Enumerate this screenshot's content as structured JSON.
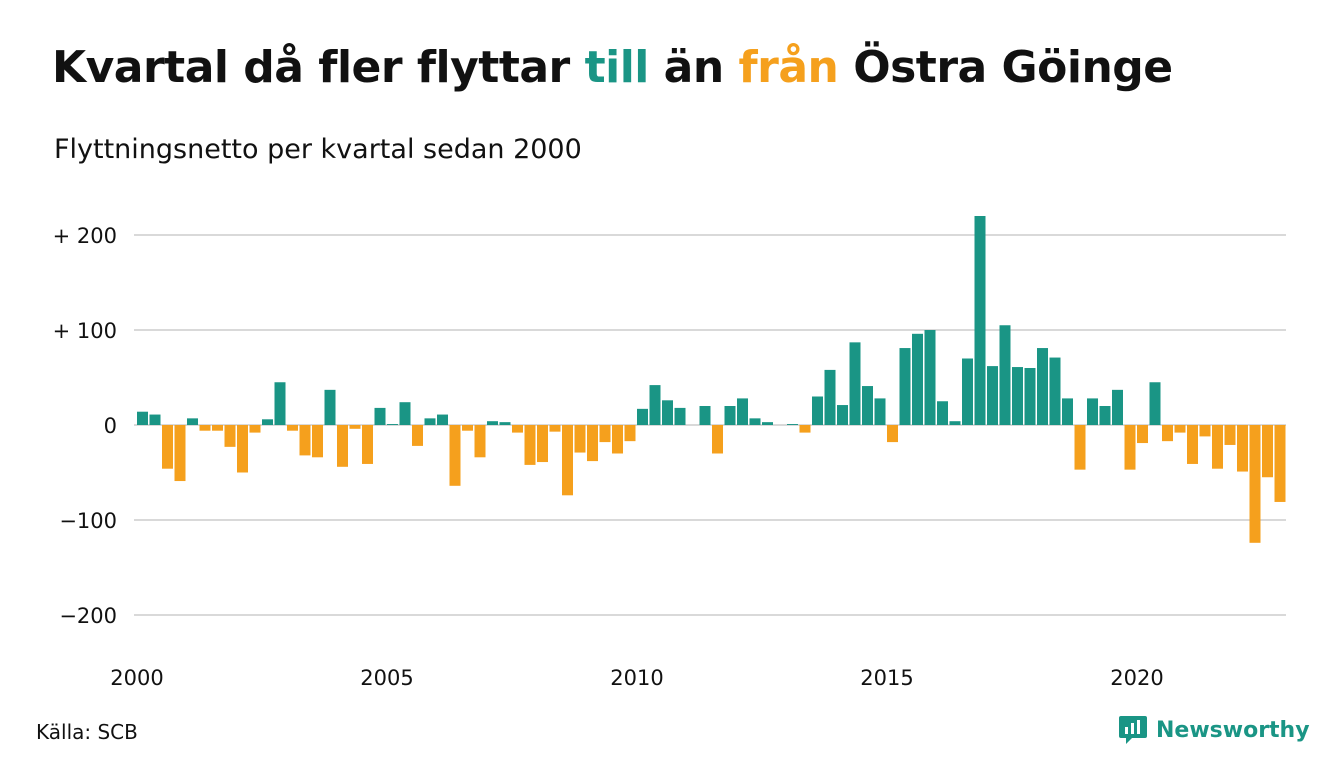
{
  "title": {
    "part1": "Kvartal då fler flyttar ",
    "part2": "till",
    "part3": " än ",
    "part4": "från",
    "part5": " Östra Göinge"
  },
  "subtitle": "Flyttningsnetto per kvartal sedan 2000",
  "source": "Källa: SCB",
  "brand": "Newsworthy",
  "colors": {
    "positive": "#1a9585",
    "negative": "#f5a01d",
    "text": "#111111",
    "grid": "#d9d9d9"
  },
  "chart_data": {
    "type": "bar",
    "title": "Kvartal då fler flyttar till än från Östra Göinge",
    "subtitle": "Flyttningsnetto per kvartal sedan 2000",
    "x_start": "2000 Q1",
    "x_ticks": [
      "2000",
      "2005",
      "2010",
      "2015",
      "2020"
    ],
    "y_ticks": [
      200,
      100,
      0,
      -100,
      -200
    ],
    "y_tick_labels": [
      "+ 200",
      "+ 100",
      "0",
      "−100",
      "−200"
    ],
    "ylim": [
      -230,
      230
    ],
    "grid": true,
    "values": [
      14,
      11,
      -46,
      -59,
      7,
      -6,
      -6,
      -23,
      -50,
      -8,
      6,
      45,
      -6,
      -32,
      -34,
      37,
      -44,
      -4,
      -41,
      18,
      1,
      24,
      -22,
      7,
      11,
      -64,
      -6,
      -34,
      4,
      3,
      -8,
      -42,
      -39,
      -7,
      -74,
      -29,
      -38,
      -18,
      -30,
      -17,
      17,
      42,
      26,
      18,
      0,
      20,
      -30,
      20,
      28,
      7,
      3,
      0,
      1,
      -8,
      30,
      58,
      21,
      87,
      41,
      28,
      -18,
      81,
      96,
      100,
      25,
      4,
      70,
      220,
      62,
      105,
      61,
      60,
      81,
      71,
      28,
      -47,
      28,
      20,
      37,
      -47,
      -19,
      45,
      -17,
      -8,
      -41,
      -12,
      -46,
      -21,
      -49,
      -124,
      -55,
      -81
    ]
  }
}
